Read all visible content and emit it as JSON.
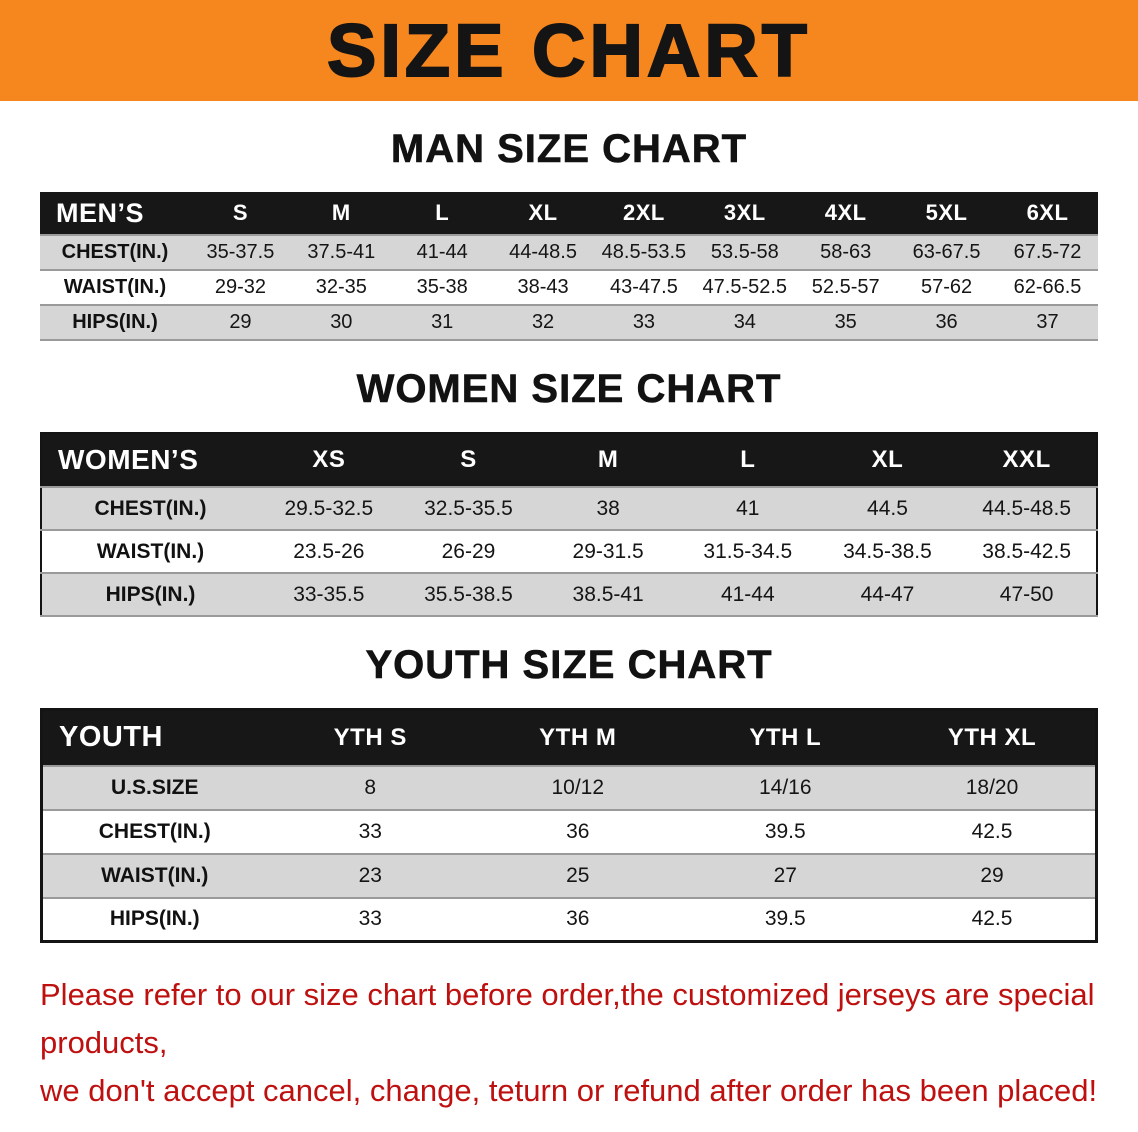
{
  "banner": {
    "title": "SIZE CHART"
  },
  "tables": [
    {
      "heading": "MAN SIZE CHART",
      "header": [
        "MEN’S",
        "S",
        "M",
        "L",
        "XL",
        "2XL",
        "3XL",
        "4XL",
        "5XL",
        "6XL"
      ],
      "rows": [
        [
          "CHEST(IN.)",
          "35-37.5",
          "37.5-41",
          "41-44",
          "44-48.5",
          "48.5-53.5",
          "53.5-58",
          "58-63",
          "63-67.5",
          "67.5-72"
        ],
        [
          "WAIST(IN.)",
          "29-32",
          "32-35",
          "35-38",
          "38-43",
          "43-47.5",
          "47.5-52.5",
          "52.5-57",
          "57-62",
          "62-66.5"
        ],
        [
          "HIPS(IN.)",
          "29",
          "30",
          "31",
          "32",
          "33",
          "34",
          "35",
          "36",
          "37"
        ]
      ]
    },
    {
      "heading": "WOMEN SIZE CHART",
      "header": [
        "WOMEN’S",
        "XS",
        "S",
        "M",
        "L",
        "XL",
        "XXL"
      ],
      "rows": [
        [
          "CHEST(IN.)",
          "29.5-32.5",
          "32.5-35.5",
          "38",
          "41",
          "44.5",
          "44.5-48.5"
        ],
        [
          "WAIST(IN.)",
          "23.5-26",
          "26-29",
          "29-31.5",
          "31.5-34.5",
          "34.5-38.5",
          "38.5-42.5"
        ],
        [
          "HIPS(IN.)",
          "33-35.5",
          "35.5-38.5",
          "38.5-41",
          "41-44",
          "44-47",
          "47-50"
        ]
      ]
    },
    {
      "heading": "YOUTH SIZE CHART",
      "header": [
        "YOUTH",
        "YTH S",
        "YTH M",
        "YTH L",
        "YTH XL"
      ],
      "rows": [
        [
          "U.S.SIZE",
          "8",
          "10/12",
          "14/16",
          "18/20"
        ],
        [
          "CHEST(IN.)",
          "33",
          "36",
          "39.5",
          "42.5"
        ],
        [
          "WAIST(IN.)",
          "23",
          "25",
          "27",
          "29"
        ],
        [
          "HIPS(IN.)",
          "33",
          "36",
          "39.5",
          "42.5"
        ]
      ]
    }
  ],
  "footer": {
    "line1": "Please refer to our size chart before order,the customized jerseys are special products,",
    "line2": "we don't accept cancel, change, teturn or refund after order has been placed!"
  },
  "colors": {
    "banner_orange": "#f6871f",
    "header_black": "#171717",
    "row_gray": "#d6d6d6",
    "note_red": "#bf1010"
  }
}
